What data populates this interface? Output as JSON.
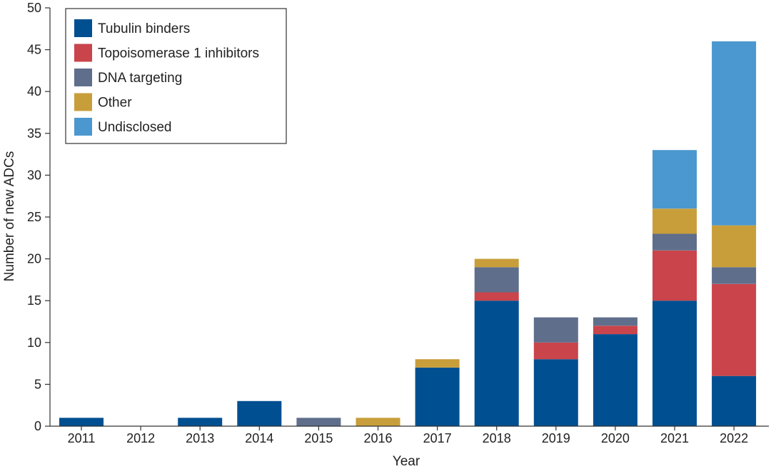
{
  "chart_data": {
    "type": "bar",
    "stacked": true,
    "title": "",
    "xlabel": "Year",
    "ylabel": "Number of new ADCs",
    "ylim": [
      0,
      50
    ],
    "yticks": [
      0,
      5,
      10,
      15,
      20,
      25,
      30,
      35,
      40,
      45,
      50
    ],
    "grid": false,
    "legend_position": "top-left",
    "categories": [
      "2011",
      "2012",
      "2013",
      "2014",
      "2015",
      "2016",
      "2017",
      "2018",
      "2019",
      "2020",
      "2021",
      "2022"
    ],
    "series": [
      {
        "name": "Tubulin binders",
        "color": "#004f91",
        "values": [
          1,
          0,
          1,
          3,
          0,
          0,
          7,
          15,
          8,
          11,
          15,
          6
        ]
      },
      {
        "name": "Topoisomerase 1 inhibitors",
        "color": "#c9444b",
        "values": [
          0,
          0,
          0,
          0,
          0,
          0,
          0,
          1,
          2,
          1,
          6,
          11
        ]
      },
      {
        "name": "DNA targeting",
        "color": "#5f6e8b",
        "values": [
          0,
          0,
          0,
          0,
          1,
          0,
          0,
          3,
          3,
          1,
          2,
          2
        ]
      },
      {
        "name": "Other",
        "color": "#c89e3a",
        "values": [
          0,
          0,
          0,
          0,
          0,
          1,
          1,
          1,
          0,
          0,
          3,
          5
        ]
      },
      {
        "name": "Undisclosed",
        "color": "#4b97cf",
        "values": [
          0,
          0,
          0,
          0,
          0,
          0,
          0,
          0,
          0,
          0,
          7,
          22
        ]
      }
    ]
  }
}
